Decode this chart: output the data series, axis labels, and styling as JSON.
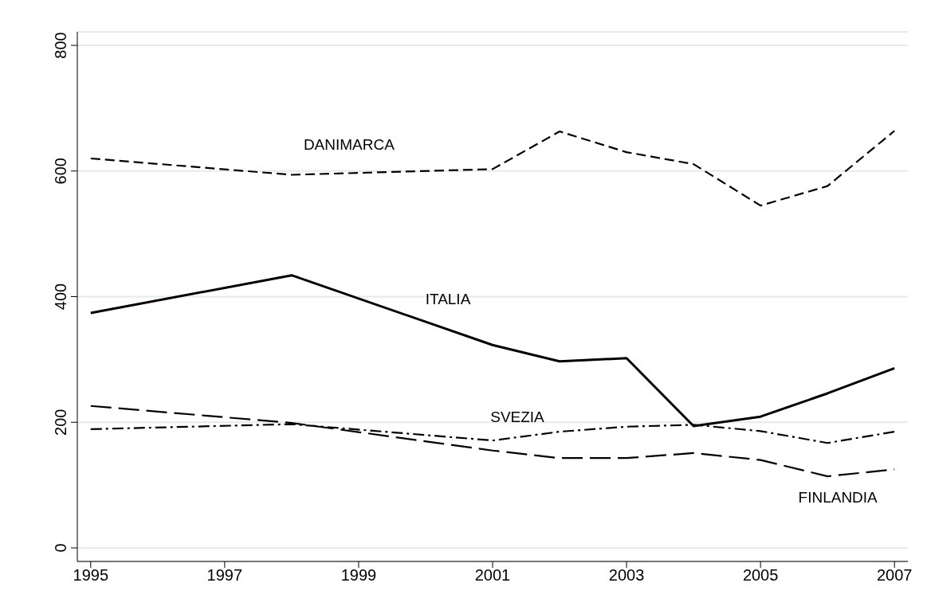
{
  "chart_data": {
    "type": "line",
    "x": [
      1995,
      1998,
      2001,
      2002,
      2003,
      2004,
      2005,
      2006,
      2007
    ],
    "series": [
      {
        "name": "DANIMARCA",
        "color": "#000000",
        "line_style": "dashed",
        "values": [
          620,
          594,
          603,
          663,
          630,
          611,
          545,
          576,
          664
        ]
      },
      {
        "name": "ITALIA",
        "color": "#000000",
        "line_style": "solid",
        "values": [
          374,
          434,
          323,
          297,
          302,
          194,
          209,
          246,
          286
        ]
      },
      {
        "name": "SVEZIA",
        "color": "#000000",
        "line_style": "dashdot",
        "values": [
          189,
          197,
          171,
          185,
          193,
          196,
          186,
          167,
          185
        ]
      },
      {
        "name": "FINLANDIA",
        "color": "#000000",
        "line_style": "longdash",
        "values": [
          226,
          199,
          155,
          143,
          143,
          151,
          140,
          114,
          125
        ]
      }
    ],
    "xlim": [
      1994.8,
      2007.2
    ],
    "xticks": [
      1995,
      1997,
      1999,
      2001,
      2003,
      2005,
      2007
    ],
    "ylim": [
      0,
      800
    ],
    "yticks": [
      0,
      200,
      400,
      600,
      800
    ],
    "grid": "y",
    "marker": "none",
    "legend": false
  }
}
